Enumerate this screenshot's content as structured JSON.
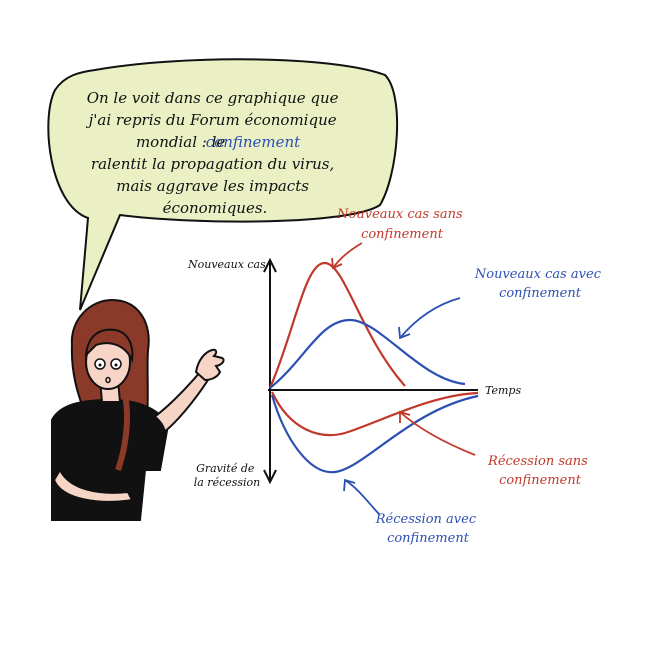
{
  "speech_bubble": {
    "line1": "On le voit dans ce graphique que",
    "line2": "j'ai repris du Forum économique",
    "line3_before": "mondial : le ",
    "line3_highlight": "confinement",
    "line4": "ralentit la propagation du virus,",
    "line5": "mais aggrave les impacts",
    "line6": "économiques."
  },
  "axes": {
    "y_top_label": "Nouveaux cas",
    "y_bottom_label_line1": "Gravité de",
    "y_bottom_label_line2": "la récession",
    "x_label": "Temps"
  },
  "annotations": {
    "cases_no_lockdown": {
      "line1": "Nouveaux cas sans",
      "line2": "confinement"
    },
    "cases_lockdown": {
      "line1": "Nouveaux cas avec",
      "line2": "confinement"
    },
    "recession_no_lockdown": {
      "line1": "Récession sans",
      "line2": "confinement"
    },
    "recession_lockdown": {
      "line1": "Récession avec",
      "line2": "confinement"
    }
  },
  "colors": {
    "red": "#c0392b",
    "blue": "#2c4fb3",
    "bubble_fill": "#eaf0c4",
    "ink": "#111111"
  }
}
